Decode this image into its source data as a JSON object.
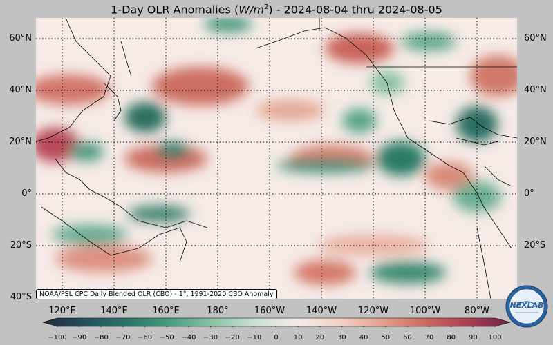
{
  "title": {
    "prefix": "1-Day OLR Anomalies (",
    "unit": "W/m",
    "exponent": "2",
    "suffix": ") - 2024-08-04 thru 2024-08-05"
  },
  "source_note": "NOAA/PSL CPC Daily Blended OLR (CBO) - 1°, 1991-2020 CBO Anomaly",
  "lat_labels": [
    "60°N",
    "40°N",
    "20°N",
    "0°",
    "20°S",
    "40°S"
  ],
  "lon_labels": [
    "120°E",
    "140°E",
    "160°E",
    "180°",
    "160°W",
    "140°W",
    "120°W",
    "100°W",
    "80°W"
  ],
  "colorbar": {
    "ticks": [
      "−100",
      "−90",
      "−80",
      "−70",
      "−60",
      "−50",
      "−40",
      "−30",
      "−20",
      "−10",
      "0",
      "10",
      "20",
      "30",
      "40",
      "50",
      "60",
      "70",
      "80",
      "90",
      "100"
    ],
    "min": -100,
    "max": 100,
    "colors": [
      "#1f2a3d",
      "#24505a",
      "#2a7468",
      "#4a9c82",
      "#8cc4a4",
      "#c8e2d2",
      "#f5ebe7",
      "#f2d2c4",
      "#e4a08e",
      "#cc6a60",
      "#a84050",
      "#6e2446"
    ]
  },
  "logo": {
    "text": "NEXLAB",
    "colors": [
      "#2a62a0",
      "#ffffff"
    ]
  },
  "gridlines": "dotted",
  "map_colors": {
    "negative": "#2c7a66",
    "positive": "#c8645a",
    "neutral": "#f6eae6"
  }
}
